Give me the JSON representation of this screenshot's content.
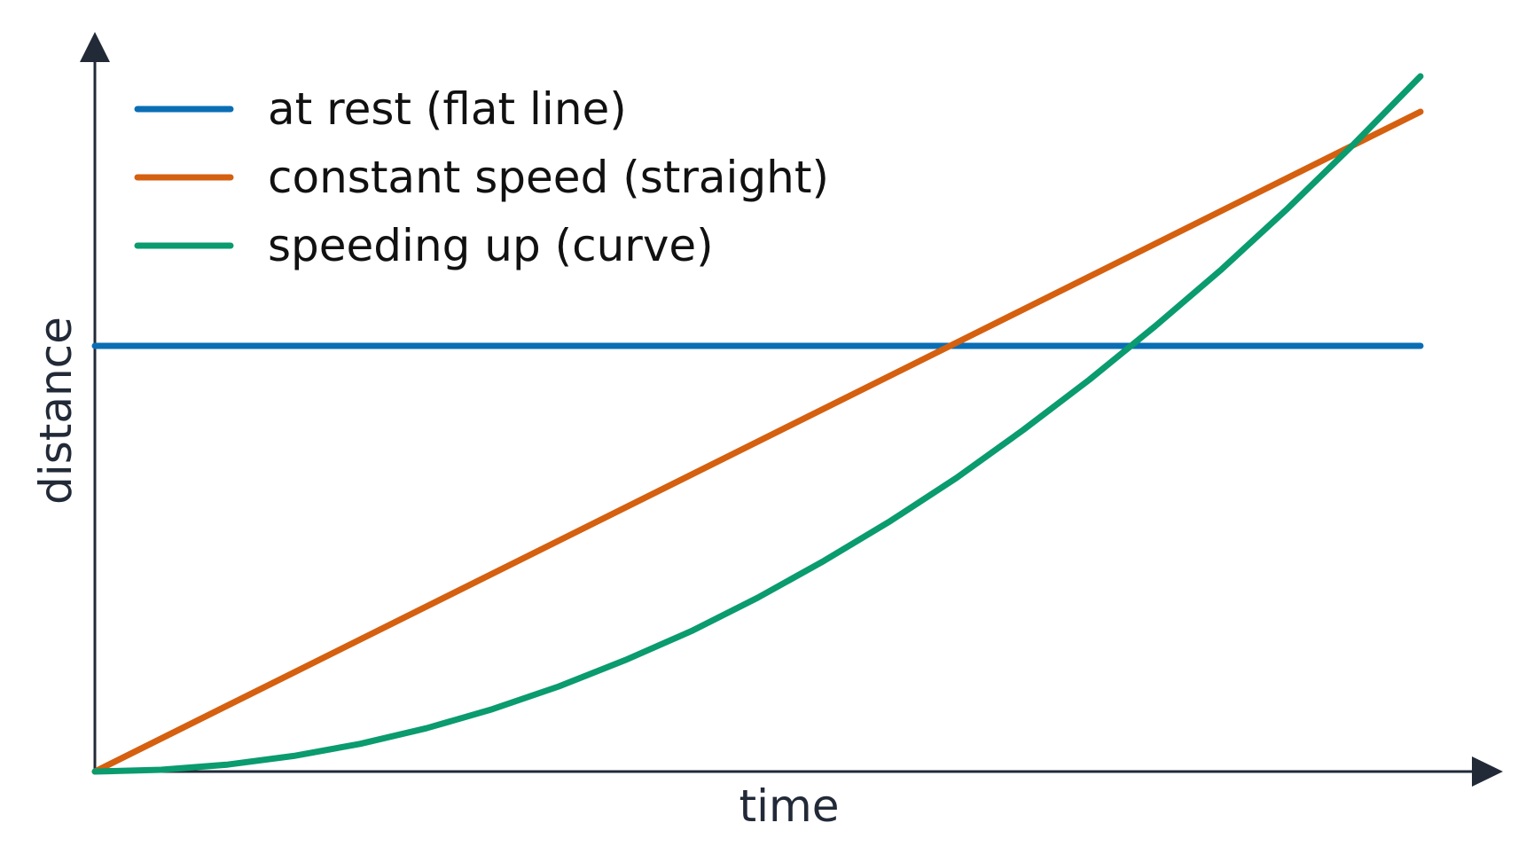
{
  "chart_data": {
    "type": "line",
    "title": "",
    "xlabel": "time",
    "ylabel": "distance",
    "xlim": [
      0,
      1
    ],
    "ylim": [
      0,
      1
    ],
    "grid": false,
    "legend_position": "top-left",
    "axis_color": "#222a38",
    "series": [
      {
        "name": "at rest (flat line)",
        "color": "#0a6eb4",
        "x": [
          0,
          1
        ],
        "y": [
          0.6,
          0.6
        ]
      },
      {
        "name": "constant speed (straight)",
        "color": "#d5600f",
        "x": [
          0,
          1
        ],
        "y": [
          0,
          0.93
        ]
      },
      {
        "name": "speeding up (curve)",
        "color": "#0a9b6e",
        "x": [
          0,
          0.05,
          0.1,
          0.15,
          0.2,
          0.25,
          0.3,
          0.35,
          0.4,
          0.45,
          0.5,
          0.55,
          0.6,
          0.65,
          0.7,
          0.75,
          0.8,
          0.85,
          0.9,
          0.95,
          1
        ],
        "y": [
          0,
          0.0025,
          0.0098,
          0.022,
          0.039,
          0.061,
          0.088,
          0.12,
          0.157,
          0.198,
          0.245,
          0.297,
          0.353,
          0.414,
          0.481,
          0.552,
          0.628,
          0.708,
          0.794,
          0.885,
          0.98
        ]
      }
    ]
  }
}
